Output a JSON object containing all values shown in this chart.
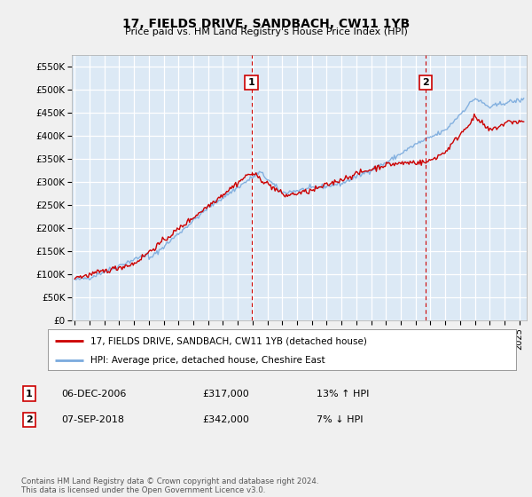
{
  "title": "17, FIELDS DRIVE, SANDBACH, CW11 1YB",
  "subtitle": "Price paid vs. HM Land Registry's House Price Index (HPI)",
  "ylabel_ticks": [
    "£0",
    "£50K",
    "£100K",
    "£150K",
    "£200K",
    "£250K",
    "£300K",
    "£350K",
    "£400K",
    "£450K",
    "£500K",
    "£550K"
  ],
  "ytick_values": [
    0,
    50000,
    100000,
    150000,
    200000,
    250000,
    300000,
    350000,
    400000,
    450000,
    500000,
    550000
  ],
  "ylim": [
    0,
    575000
  ],
  "xlim_start": 1994.8,
  "xlim_end": 2025.5,
  "plot_bg_color": "#dce9f5",
  "grid_color": "#ffffff",
  "fig_bg_color": "#f0f0f0",
  "hpi_color": "#7aaadd",
  "price_color": "#cc0000",
  "marker1_x": 2006.92,
  "marker2_x": 2018.67,
  "marker1_label": "1",
  "marker2_label": "2",
  "marker1_price": 317000,
  "marker2_price": 342000,
  "legend_line1": "17, FIELDS DRIVE, SANDBACH, CW11 1YB (detached house)",
  "legend_line2": "HPI: Average price, detached house, Cheshire East",
  "annotation1_date": "06-DEC-2006",
  "annotation1_price": "£317,000",
  "annotation1_hpi": "13% ↑ HPI",
  "annotation2_date": "07-SEP-2018",
  "annotation2_price": "£342,000",
  "annotation2_hpi": "7% ↓ HPI",
  "footer": "Contains HM Land Registry data © Crown copyright and database right 2024.\nThis data is licensed under the Open Government Licence v3.0.",
  "xtick_years": [
    1995,
    1996,
    1997,
    1998,
    1999,
    2000,
    2001,
    2002,
    2003,
    2004,
    2005,
    2006,
    2007,
    2008,
    2009,
    2010,
    2011,
    2012,
    2013,
    2014,
    2015,
    2016,
    2017,
    2018,
    2019,
    2020,
    2021,
    2022,
    2023,
    2024,
    2025
  ]
}
